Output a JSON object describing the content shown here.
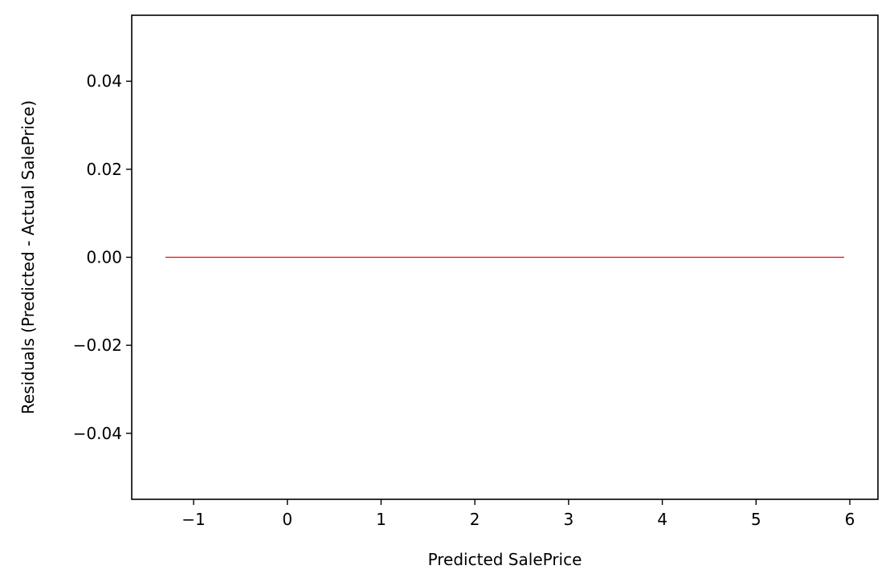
{
  "chart_data": {
    "type": "line",
    "title": "",
    "xlabel": "Predicted SalePrice",
    "ylabel": "Residuals (Predicted - Actual SalePrice)",
    "xlim": [
      -1.66,
      6.3
    ],
    "ylim": [
      -0.055,
      0.055
    ],
    "x_ticks": [
      -1,
      0,
      1,
      2,
      3,
      4,
      5,
      6
    ],
    "x_tick_labels": [
      "−1",
      "0",
      "1",
      "2",
      "3",
      "4",
      "5",
      "6"
    ],
    "y_ticks": [
      -0.04,
      -0.02,
      0.0,
      0.02,
      0.04
    ],
    "y_tick_labels": [
      "−0.04",
      "−0.02",
      "0.00",
      "0.02",
      "0.04"
    ],
    "grid": false,
    "series": [
      {
        "color": "#ff0000",
        "x": [
          -1.3,
          5.94
        ],
        "y": [
          0.0,
          0.0
        ]
      }
    ]
  }
}
